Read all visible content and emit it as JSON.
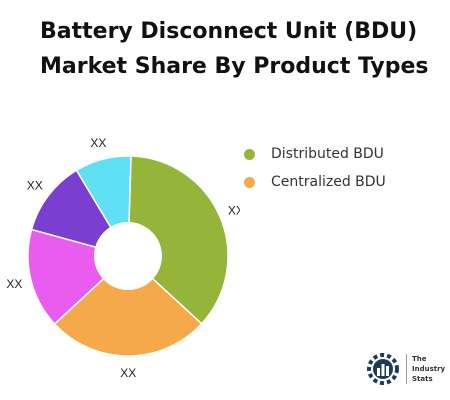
{
  "title": "Battery Disconnect Unit (BDU) Market Share By Product Types",
  "legend": {
    "items": [
      {
        "label": "Distributed BDU",
        "color": "#95b53a"
      },
      {
        "label": "Centralized BDU",
        "color": "#f5a94a"
      }
    ]
  },
  "logo": {
    "lines": [
      "The",
      "Industry",
      "Stats"
    ]
  },
  "chart_data": {
    "type": "pie",
    "donut": true,
    "slices": [
      {
        "value": 36,
        "label": "XX",
        "color": "#95b53a"
      },
      {
        "value": 26,
        "label": "XX",
        "color": "#f5a94a"
      },
      {
        "value": 16,
        "label": "XX",
        "color": "#e95cf0"
      },
      {
        "value": 12,
        "label": "XX",
        "color": "#7a3fd1"
      },
      {
        "value": 9,
        "label": "XX",
        "color": "#5fe0f5"
      }
    ]
  }
}
